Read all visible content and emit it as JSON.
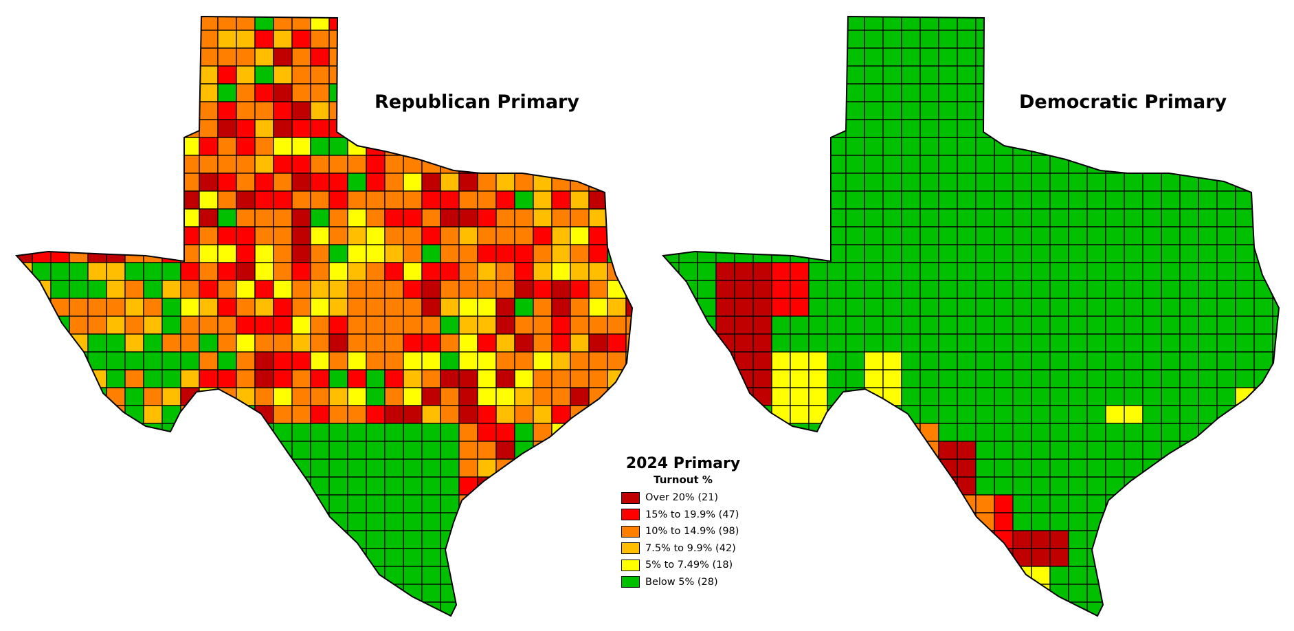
{
  "maps": {
    "republican": {
      "title": "Republican Primary",
      "fill_colors": [
        "#c00000",
        "#ff0000",
        "#ff8000",
        "#ffbf00",
        "#ffff00",
        "#00c000"
      ]
    },
    "democratic": {
      "title": "Democratic Primary",
      "base_color": "#00c000",
      "fill_colors": [
        "#c00000",
        "#ff0000",
        "#ff8000",
        "#ffbf00",
        "#ffff00"
      ]
    }
  },
  "legend": {
    "title": "2024 Primary",
    "subtitle": "Turnout %",
    "items": [
      {
        "label": "Over 20% (21)",
        "color": "#c00000"
      },
      {
        "label": "15% to 19.9% (47)",
        "color": "#ff0000"
      },
      {
        "label": "10% to 14.9% (98)",
        "color": "#ff8000"
      },
      {
        "label": "7.5% to 9.9% (42)",
        "color": "#ffbf00"
      },
      {
        "label": "5% to 7.49% (18)",
        "color": "#ffff00"
      },
      {
        "label": "Below 5% (28)",
        "color": "#00c000"
      }
    ]
  }
}
